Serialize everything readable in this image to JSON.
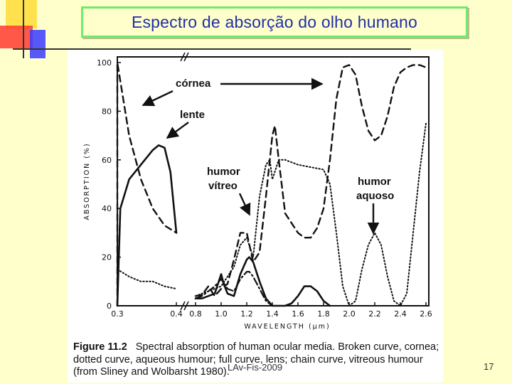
{
  "slide": {
    "title": "Espectro de absorção do olho humano",
    "footer": "LAv-Fis-2009",
    "page_number": "17"
  },
  "figure": {
    "caption_label": "Figure 11.2",
    "caption_text": "Spectral absorption of human ocular media. Broken curve, cornea; dotted curve, aqueous humour; full curve, lens; chain curve, vitreous humour (from Sliney and Wolbarsht 1980)."
  },
  "chart_data": {
    "type": "line",
    "title": "",
    "xlabel": "WAVELENGTH (μm)",
    "ylabel": "ABSORPTION (%)",
    "ylim": [
      0,
      100
    ],
    "yticks": [
      "0",
      "20",
      "40",
      "60",
      "80",
      "100"
    ],
    "xticks": [
      "0.3",
      "0.4",
      "0.8",
      "1.0",
      "1.2",
      "1.4",
      "1.6",
      "1.8",
      "2.0",
      "2.2",
      "2.4",
      "2.6"
    ],
    "x_axis_break": "between 0.4 and 0.8",
    "grid": false,
    "legend": "none (curves labelled by annotations)",
    "series": [
      {
        "name": "córnea",
        "style": "broken",
        "points": [
          [
            0.3,
            0
          ],
          [
            0.3,
            100
          ],
          [
            0.32,
            70
          ],
          [
            0.34,
            52
          ],
          [
            0.36,
            40
          ],
          [
            0.38,
            33
          ],
          [
            0.4,
            30
          ],
          [
            0.8,
            4
          ],
          [
            0.85,
            4.5
          ],
          [
            0.9,
            8
          ],
          [
            0.95,
            4
          ],
          [
            1.0,
            7
          ],
          [
            1.05,
            9
          ],
          [
            1.1,
            19
          ],
          [
            1.15,
            30
          ],
          [
            1.2,
            30
          ],
          [
            1.25,
            18
          ],
          [
            1.3,
            22
          ],
          [
            1.35,
            45
          ],
          [
            1.4,
            70
          ],
          [
            1.42,
            74
          ],
          [
            1.45,
            60
          ],
          [
            1.5,
            38
          ],
          [
            1.55,
            34
          ],
          [
            1.6,
            30
          ],
          [
            1.65,
            28
          ],
          [
            1.7,
            28
          ],
          [
            1.75,
            32
          ],
          [
            1.8,
            40
          ],
          [
            1.85,
            60
          ],
          [
            1.9,
            85
          ],
          [
            1.95,
            98
          ],
          [
            2.0,
            99
          ],
          [
            2.05,
            95
          ],
          [
            2.1,
            82
          ],
          [
            2.15,
            72
          ],
          [
            2.2,
            68
          ],
          [
            2.25,
            70
          ],
          [
            2.3,
            78
          ],
          [
            2.35,
            90
          ],
          [
            2.4,
            96
          ],
          [
            2.45,
            98
          ],
          [
            2.5,
            99
          ],
          [
            2.55,
            99
          ],
          [
            2.6,
            98
          ]
        ]
      },
      {
        "name": "humor aquoso",
        "style": "dotted",
        "points": [
          [
            0.3,
            15
          ],
          [
            0.32,
            12
          ],
          [
            0.34,
            10
          ],
          [
            0.36,
            10
          ],
          [
            0.38,
            8
          ],
          [
            0.4,
            7
          ],
          [
            0.8,
            4
          ],
          [
            0.9,
            6
          ],
          [
            1.0,
            8
          ],
          [
            1.1,
            16
          ],
          [
            1.15,
            25
          ],
          [
            1.2,
            28
          ],
          [
            1.25,
            20
          ],
          [
            1.3,
            45
          ],
          [
            1.35,
            58
          ],
          [
            1.38,
            60
          ],
          [
            1.4,
            52
          ],
          [
            1.45,
            60
          ],
          [
            1.5,
            60
          ],
          [
            1.55,
            59
          ],
          [
            1.6,
            58
          ],
          [
            1.7,
            57
          ],
          [
            1.8,
            56
          ],
          [
            1.85,
            50
          ],
          [
            1.9,
            30
          ],
          [
            1.95,
            8
          ],
          [
            2.0,
            0
          ],
          [
            2.05,
            2
          ],
          [
            2.1,
            15
          ],
          [
            2.15,
            25
          ],
          [
            2.2,
            30
          ],
          [
            2.25,
            25
          ],
          [
            2.3,
            12
          ],
          [
            2.35,
            2
          ],
          [
            2.4,
            0
          ],
          [
            2.45,
            5
          ],
          [
            2.5,
            30
          ],
          [
            2.55,
            55
          ],
          [
            2.6,
            75
          ]
        ]
      },
      {
        "name": "lente",
        "style": "full",
        "points": [
          [
            0.3,
            0
          ],
          [
            0.305,
            40
          ],
          [
            0.32,
            52
          ],
          [
            0.34,
            58
          ],
          [
            0.36,
            64
          ],
          [
            0.37,
            66
          ],
          [
            0.38,
            65
          ],
          [
            0.39,
            55
          ],
          [
            0.4,
            30
          ],
          [
            0.8,
            3
          ],
          [
            0.85,
            3
          ],
          [
            0.9,
            4
          ],
          [
            0.95,
            5
          ],
          [
            1.0,
            13
          ],
          [
            1.02,
            9
          ],
          [
            1.05,
            5
          ],
          [
            1.1,
            4
          ],
          [
            1.15,
            13
          ],
          [
            1.2,
            19
          ],
          [
            1.22,
            20
          ],
          [
            1.25,
            18
          ],
          [
            1.3,
            10
          ],
          [
            1.35,
            3
          ],
          [
            1.4,
            0
          ],
          [
            1.5,
            0
          ],
          [
            1.55,
            1
          ],
          [
            1.6,
            4
          ],
          [
            1.65,
            8
          ],
          [
            1.7,
            8
          ],
          [
            1.75,
            6
          ],
          [
            1.8,
            2
          ],
          [
            1.85,
            0
          ]
        ]
      },
      {
        "name": "humor vítreo",
        "style": "chain",
        "points": [
          [
            0.8,
            3
          ],
          [
            0.85,
            4
          ],
          [
            0.9,
            6
          ],
          [
            0.95,
            8
          ],
          [
            1.0,
            11
          ],
          [
            1.05,
            7
          ],
          [
            1.1,
            6
          ],
          [
            1.15,
            11
          ],
          [
            1.2,
            14
          ],
          [
            1.22,
            14
          ],
          [
            1.25,
            12
          ],
          [
            1.3,
            7
          ],
          [
            1.35,
            2
          ],
          [
            1.4,
            0
          ]
        ]
      }
    ],
    "annotations": [
      {
        "text": "córnea",
        "target": "broken curve"
      },
      {
        "text": "lente",
        "target": "full curve"
      },
      {
        "text": "humor",
        "text2": "vítreo",
        "target": "chain curve"
      },
      {
        "text": "humor",
        "text2": "aquoso",
        "target": "dotted curve"
      }
    ]
  }
}
